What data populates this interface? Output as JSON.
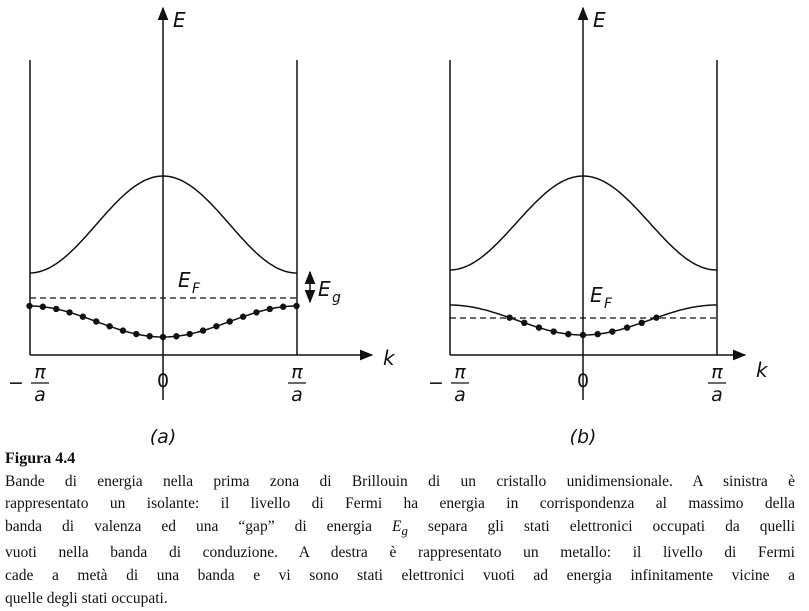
{
  "panels": [
    {
      "label": "(a)",
      "axis_e": "E",
      "axis_k": "k",
      "tick_left": {
        "sign": "−",
        "num": "π",
        "den": "a"
      },
      "tick_zero": "0",
      "tick_right": {
        "num": "π",
        "den": "a"
      },
      "fermi": {
        "main": "E",
        "sub": "F"
      },
      "gap": {
        "main": "E",
        "sub": "g"
      }
    },
    {
      "label": "(b)",
      "axis_e": "E",
      "axis_k": "k",
      "tick_left": {
        "sign": "−",
        "num": "π",
        "den": "a"
      },
      "tick_zero": "0",
      "tick_right": {
        "num": "π",
        "den": "a"
      },
      "fermi": {
        "main": "E",
        "sub": "F"
      }
    }
  ],
  "caption": {
    "title": "Figura 4.4",
    "lines": [
      "Bande di energia nella prima zona di Brillouin di un cristallo unidimensionale. A sinistra è",
      "rappresentato un isolante: il livello di Fermi ha energia in corrispondenza al massimo della",
      {
        "pre": "banda di valenza ed una “gap” di energia",
        "var": "E",
        "sub": "g",
        "post": "separa gli stati elettronici occupati da quelli"
      },
      "vuoti nella banda di conduzione. A destra è rappresentato un metallo: il livello di Fermi",
      "cade a metà di una banda e vi sono stati elettronici vuoti ad energia infinitamente vicine a",
      "quelle degli stati occupati."
    ]
  }
}
